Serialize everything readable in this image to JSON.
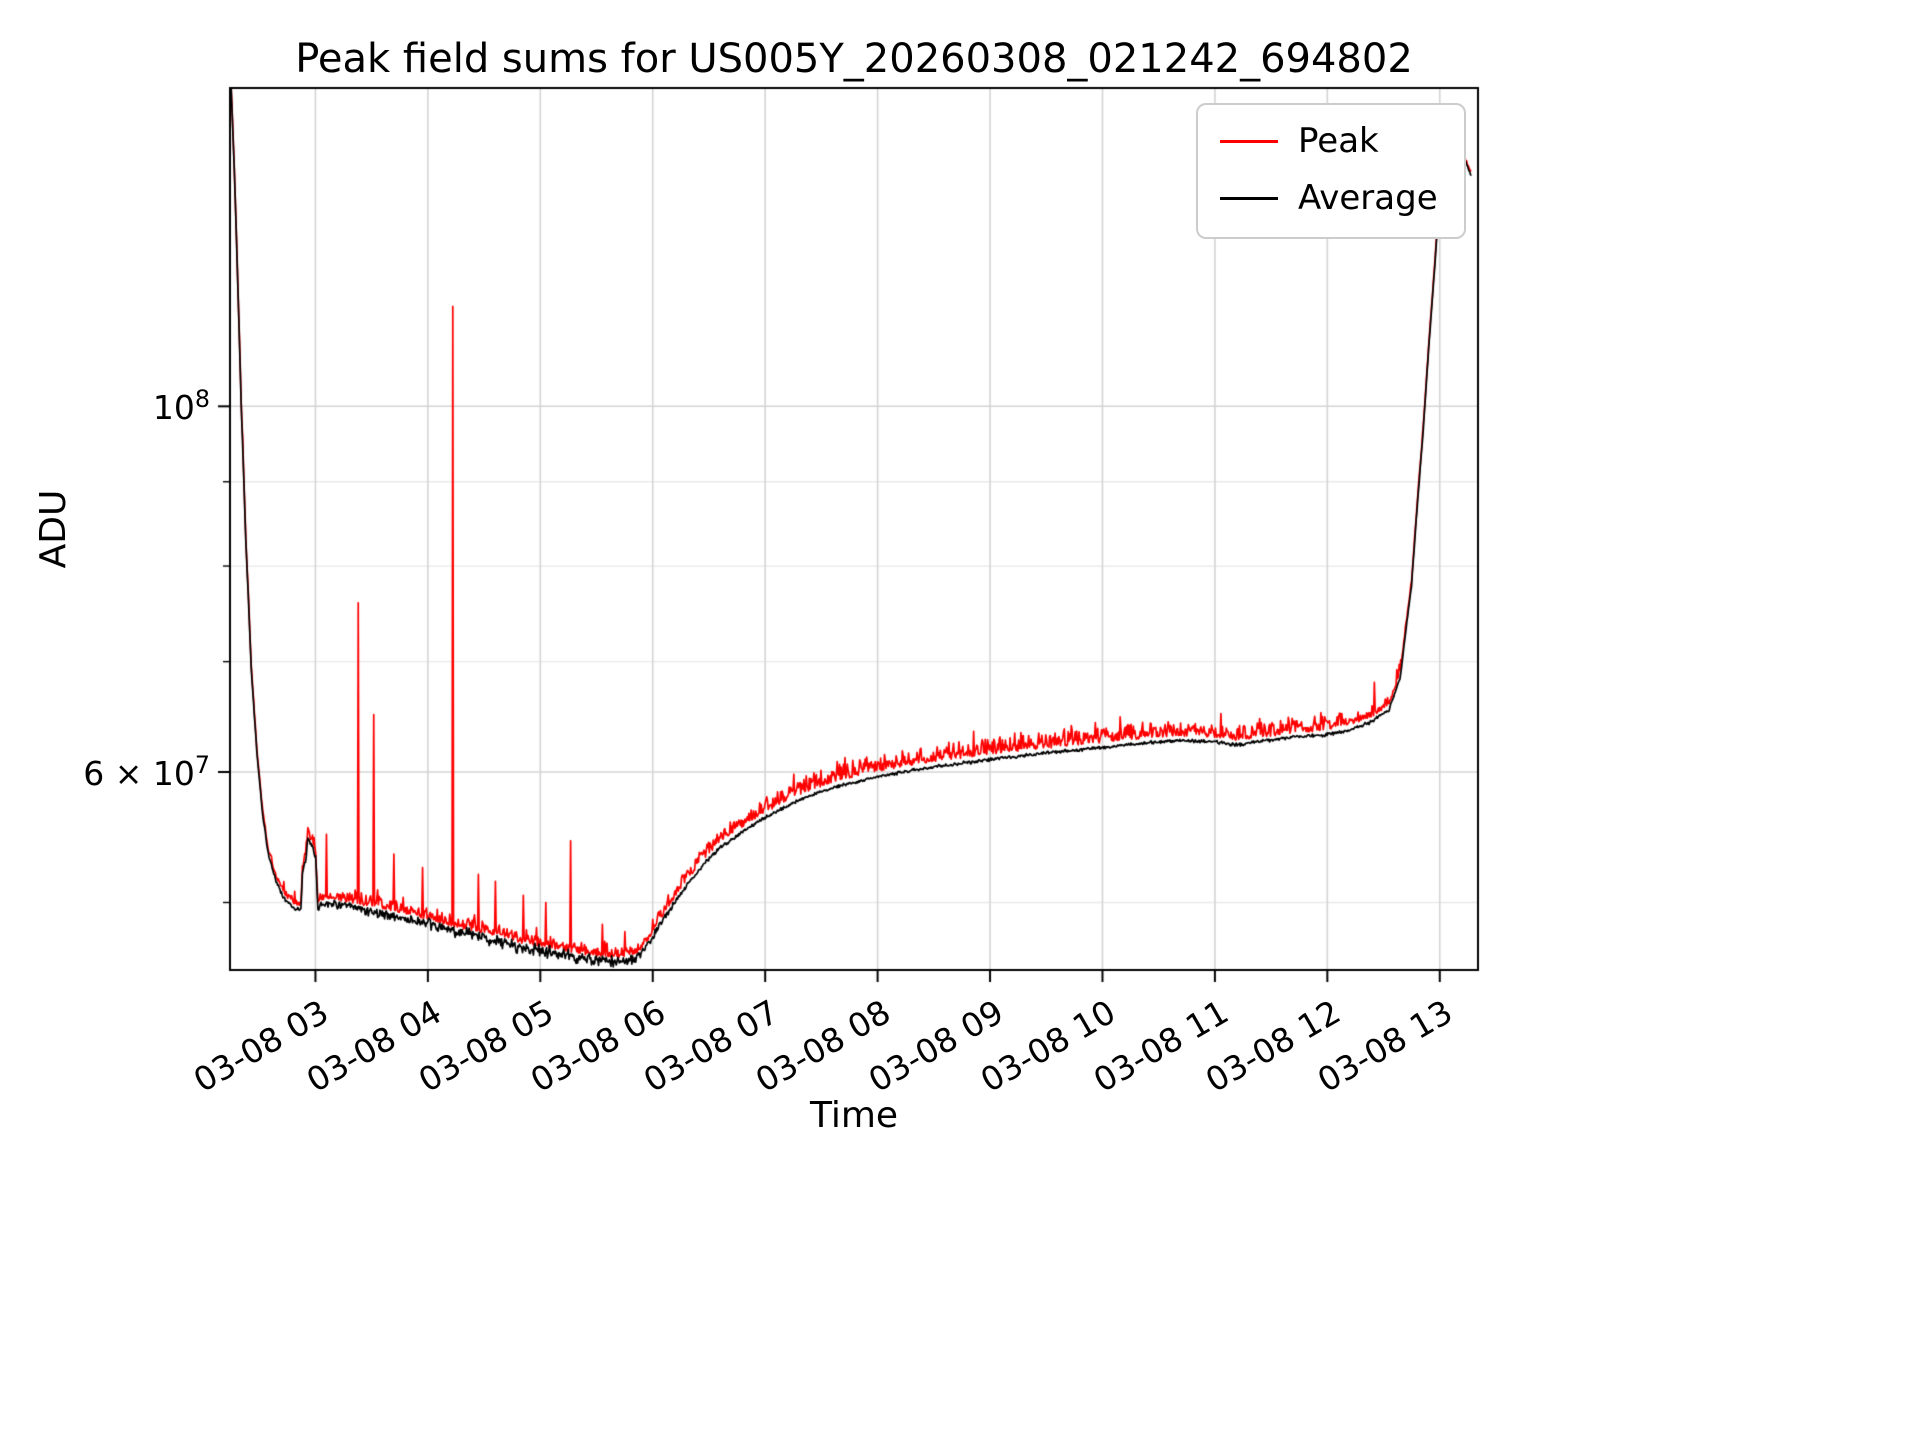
{
  "chart_data": {
    "type": "line",
    "title": "Peak field sums for US005Y_20260308_021242_694802",
    "xlabel": "Time",
    "ylabel": "ADU",
    "yscale": "log",
    "grid": true,
    "legend_position": "upper right",
    "xlim": [
      2.24,
      13.34
    ],
    "ylim": [
      45500000.0,
      156000000.0
    ],
    "x_ticks": [
      3,
      4,
      5,
      6,
      7,
      8,
      9,
      10,
      11,
      12,
      13
    ],
    "x_tick_labels": [
      "03-08 03",
      "03-08 04",
      "03-08 05",
      "03-08 06",
      "03-08 07",
      "03-08 08",
      "03-08 09",
      "03-08 10",
      "03-08 11",
      "03-08 12",
      "03-08 13"
    ],
    "y_major_ticks": [
      {
        "value": 60000000.0,
        "base": "6 × 10",
        "exp": "7"
      },
      {
        "value": 100000000.0,
        "base": "10",
        "exp": "8"
      }
    ],
    "y_minor_gridlines": [
      50000000.0,
      70000000.0,
      80000000.0,
      90000000.0
    ],
    "grid_color": "#d4d4d4",
    "minor_grid_color": "#e9e9e9",
    "legend": [
      {
        "label": "Peak",
        "color": "#ff0000"
      },
      {
        "label": "Average",
        "color": "#000000"
      }
    ],
    "series": {
      "x_start": 2.25,
      "x_end": 13.28,
      "samples": 1600,
      "noise_seed": 42,
      "average_keypoints": [
        [
          2.25,
          156000000.0
        ],
        [
          2.28,
          138000000.0
        ],
        [
          2.31,
          118000000.0
        ],
        [
          2.34,
          100000000.0
        ],
        [
          2.38,
          83000000.0
        ],
        [
          2.43,
          69000000.0
        ],
        [
          2.48,
          61500000.0
        ],
        [
          2.53,
          56500000.0
        ],
        [
          2.58,
          53500000.0
        ],
        [
          2.65,
          51500000.0
        ],
        [
          2.72,
          50300000.0
        ],
        [
          2.8,
          49700000.0
        ],
        [
          2.87,
          49400000.0
        ],
        [
          2.885,
          52200000.0
        ],
        [
          2.91,
          52800000.0
        ],
        [
          2.93,
          54500000.0
        ],
        [
          2.96,
          54200000.0
        ],
        [
          3.0,
          53500000.0
        ],
        [
          3.02,
          49700000.0
        ],
        [
          3.1,
          50000000.0
        ],
        [
          3.3,
          49700000.0
        ],
        [
          3.6,
          49200000.0
        ],
        [
          3.9,
          48700000.0
        ],
        [
          4.2,
          48100000.0
        ],
        [
          4.5,
          47600000.0
        ],
        [
          4.8,
          47000000.0
        ],
        [
          5.1,
          46600000.0
        ],
        [
          5.4,
          46200000.0
        ],
        [
          5.65,
          46000000.0
        ],
        [
          5.85,
          46200000.0
        ],
        [
          5.95,
          47000000.0
        ],
        [
          6.05,
          48300000.0
        ],
        [
          6.15,
          49500000.0
        ],
        [
          6.3,
          51200000.0
        ],
        [
          6.45,
          52700000.0
        ],
        [
          6.6,
          54000000.0
        ],
        [
          6.8,
          55200000.0
        ],
        [
          7.0,
          56300000.0
        ],
        [
          7.3,
          57700000.0
        ],
        [
          7.6,
          58700000.0
        ],
        [
          8.0,
          59600000.0
        ],
        [
          8.4,
          60300000.0
        ],
        [
          8.8,
          60800000.0
        ],
        [
          9.2,
          61300000.0
        ],
        [
          9.6,
          61700000.0
        ],
        [
          10.0,
          62100000.0
        ],
        [
          10.4,
          62500000.0
        ],
        [
          10.7,
          62700000.0
        ],
        [
          11.0,
          62600000.0
        ],
        [
          11.2,
          62300000.0
        ],
        [
          11.45,
          62700000.0
        ],
        [
          11.7,
          63000000.0
        ],
        [
          12.0,
          63200000.0
        ],
        [
          12.2,
          63600000.0
        ],
        [
          12.4,
          64400000.0
        ],
        [
          12.55,
          65500000.0
        ],
        [
          12.65,
          68500000.0
        ],
        [
          12.75,
          78000000.0
        ],
        [
          12.85,
          96000000.0
        ],
        [
          12.95,
          120000000.0
        ],
        [
          13.02,
          140000000.0
        ],
        [
          13.07,
          147000000.0
        ],
        [
          13.12,
          143000000.0
        ],
        [
          13.17,
          146000000.0
        ],
        [
          13.22,
          141000000.0
        ],
        [
          13.28,
          138000000.0
        ]
      ],
      "noise_keypoints": [
        [
          2.25,
          0.0015
        ],
        [
          2.8,
          0.004
        ],
        [
          3.05,
          0.007
        ],
        [
          3.6,
          0.008
        ],
        [
          4.2,
          0.01
        ],
        [
          4.8,
          0.011
        ],
        [
          5.3,
          0.011
        ],
        [
          5.7,
          0.009
        ],
        [
          5.95,
          0.006
        ],
        [
          6.3,
          0.0035
        ],
        [
          7.0,
          0.0025
        ],
        [
          8.0,
          0.0025
        ],
        [
          9.0,
          0.003
        ],
        [
          10.0,
          0.0028
        ],
        [
          11.0,
          0.0028
        ],
        [
          12.0,
          0.003
        ],
        [
          12.5,
          0.0035
        ],
        [
          12.8,
          0.002
        ],
        [
          13.28,
          0.003
        ]
      ],
      "peak_offset_keypoints": [
        [
          2.25,
          0.002
        ],
        [
          2.6,
          0.004
        ],
        [
          3.0,
          0.006
        ],
        [
          4.0,
          0.006
        ],
        [
          5.0,
          0.006
        ],
        [
          5.7,
          0.005
        ],
        [
          6.1,
          0.006
        ],
        [
          6.6,
          0.007
        ],
        [
          7.2,
          0.007
        ],
        [
          9.0,
          0.007
        ],
        [
          11.0,
          0.006
        ],
        [
          11.5,
          0.005
        ],
        [
          12.0,
          0.006
        ],
        [
          12.35,
          0.007
        ],
        [
          12.6,
          0.005
        ],
        [
          12.9,
          0.003
        ],
        [
          13.28,
          0.003
        ]
      ],
      "peak_spike_amp_keypoints": [
        [
          2.25,
          0.002
        ],
        [
          3.0,
          0.01
        ],
        [
          3.6,
          0.012
        ],
        [
          4.5,
          0.012
        ],
        [
          5.5,
          0.011
        ],
        [
          6.0,
          0.012
        ],
        [
          6.6,
          0.016
        ],
        [
          7.5,
          0.018
        ],
        [
          9.0,
          0.018
        ],
        [
          11.0,
          0.016
        ],
        [
          11.9,
          0.018
        ],
        [
          12.45,
          0.01
        ],
        [
          12.8,
          0.004
        ],
        [
          13.28,
          0.005
        ]
      ],
      "peak_spikes": [
        [
          3.1,
          55000000.0
        ],
        [
          3.38,
          76000000.0
        ],
        [
          3.52,
          65000000.0
        ],
        [
          3.7,
          53500000.0
        ],
        [
          3.95,
          52500000.0
        ],
        [
          4.22,
          115000000.0
        ],
        [
          4.45,
          52000000.0
        ],
        [
          4.6,
          51500000.0
        ],
        [
          4.85,
          50500000.0
        ],
        [
          5.05,
          50000000.0
        ],
        [
          5.27,
          54500000.0
        ],
        [
          5.55,
          48500000.0
        ],
        [
          5.75,
          48000000.0
        ],
        [
          12.42,
          68000000.0
        ],
        [
          13.15,
          149000000.0
        ]
      ]
    }
  }
}
